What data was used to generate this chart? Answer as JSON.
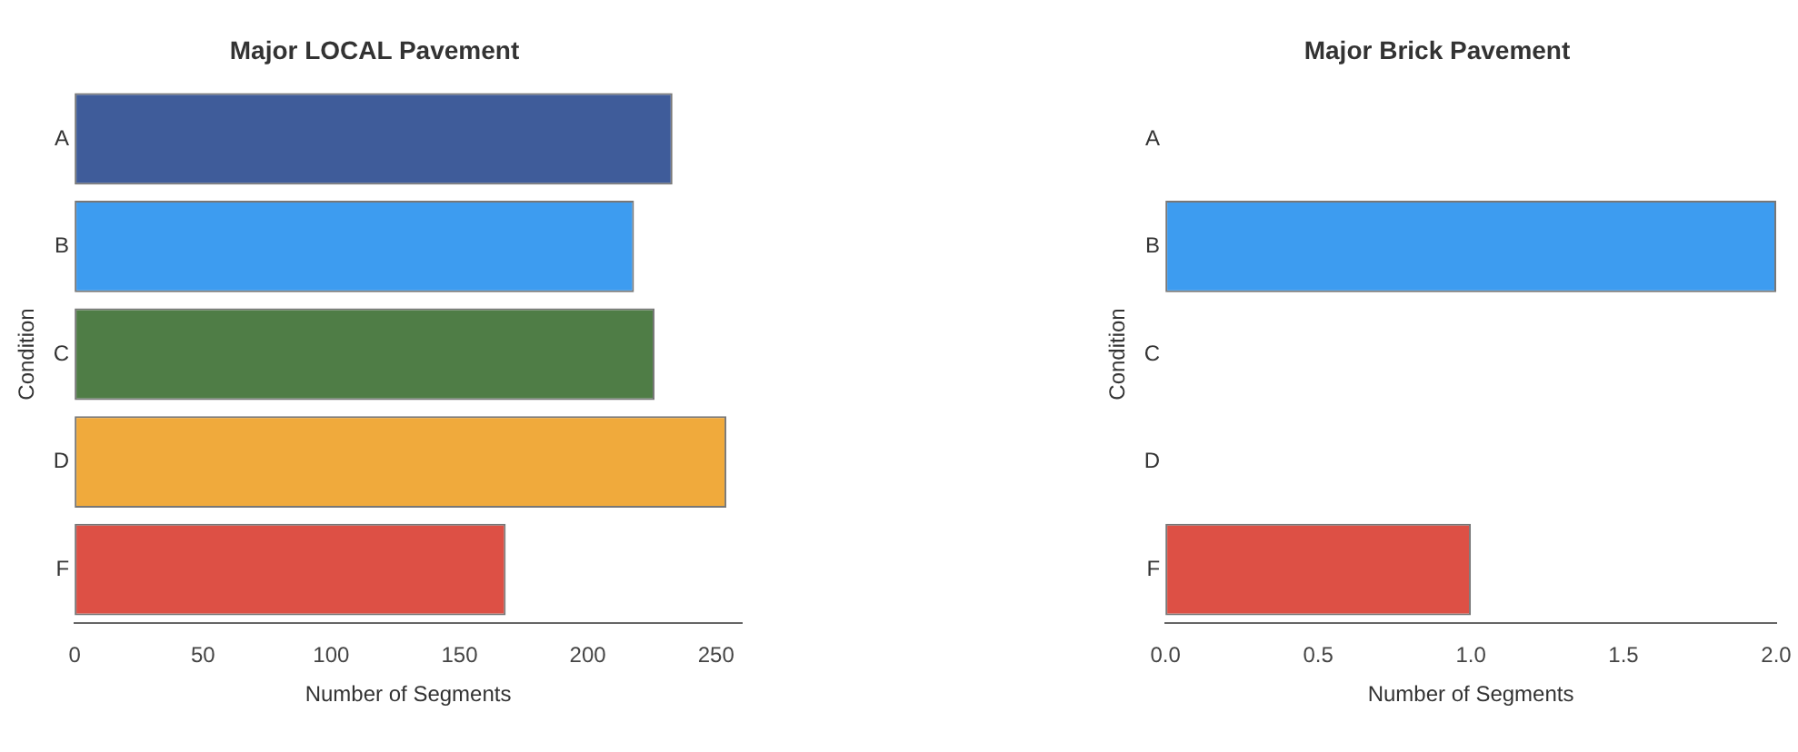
{
  "chart_data": [
    {
      "type": "bar",
      "orientation": "horizontal",
      "title": "Major LOCAL Pavement",
      "xlabel": "Number of Segments",
      "ylabel": "Condition",
      "categories": [
        "A",
        "B",
        "C",
        "D",
        "F"
      ],
      "values": [
        233,
        218,
        226,
        254,
        168
      ],
      "colors": [
        "#3f5c9a",
        "#3d9cf0",
        "#4f7d46",
        "#f0aa3c",
        "#dd5045"
      ],
      "xlim": [
        0,
        260
      ],
      "xticks": [
        0,
        50,
        100,
        150,
        200,
        250
      ],
      "grid": false,
      "legend": false
    },
    {
      "type": "bar",
      "orientation": "horizontal",
      "title": "Major Brick Pavement",
      "xlabel": "Number of Segments",
      "ylabel": "Condition",
      "categories": [
        "A",
        "B",
        "C",
        "D",
        "F"
      ],
      "values": [
        0,
        2,
        0,
        0,
        1
      ],
      "colors": [
        "#3f5c9a",
        "#3d9cf0",
        "#4f7d46",
        "#f0aa3c",
        "#dd5045"
      ],
      "xlim": [
        0,
        2
      ],
      "xticks": [
        {
          "value": 0,
          "label": "0.0"
        },
        {
          "value": 0.5,
          "label": "0.5"
        },
        {
          "value": 1,
          "label": "1.0"
        },
        {
          "value": 1.5,
          "label": "1.5"
        },
        {
          "value": 2,
          "label": "2.0"
        }
      ],
      "grid": false,
      "legend": false
    }
  ]
}
